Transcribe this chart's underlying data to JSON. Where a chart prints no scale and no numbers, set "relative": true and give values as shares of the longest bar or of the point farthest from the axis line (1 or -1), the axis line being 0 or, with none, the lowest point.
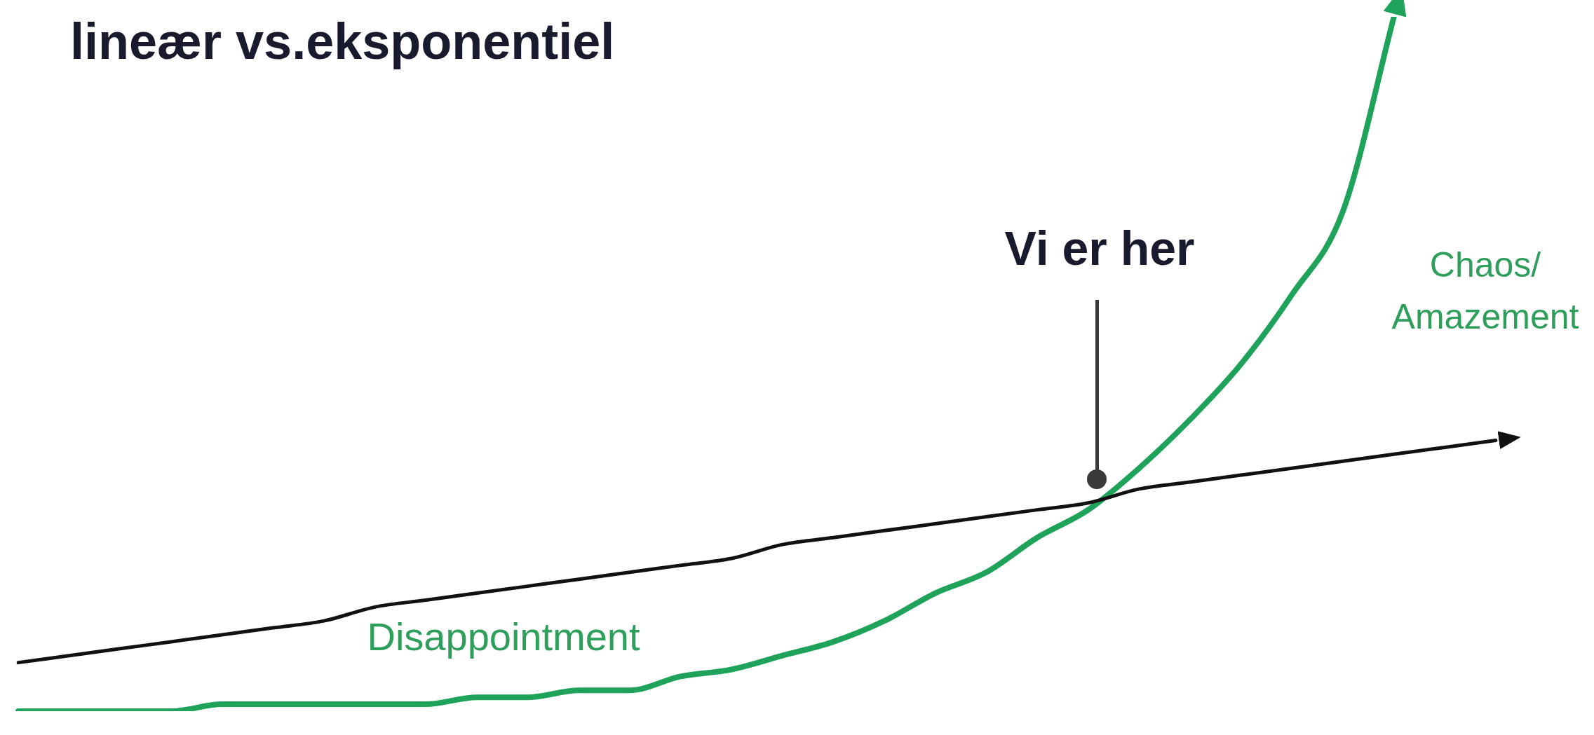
{
  "chart_data": {
    "type": "line",
    "title": "lineær vs.eksponentiel",
    "relative": true,
    "legend": false,
    "marker": "none",
    "categories": [
      null,
      null,
      null,
      null,
      null,
      null,
      null,
      null,
      null,
      null,
      null,
      null,
      null,
      null,
      null,
      null,
      null,
      null,
      null,
      null,
      null,
      null,
      null,
      null,
      null,
      null,
      null,
      null,
      null,
      null
    ],
    "series": [
      {
        "color": "#111111",
        "values": [
          0.07,
          0.08,
          0.09,
          0.1,
          0.11,
          0.12,
          0.13,
          0.15,
          0.16,
          0.17,
          0.18,
          0.19,
          0.2,
          0.21,
          0.22,
          0.24,
          0.25,
          0.26,
          0.27,
          0.28,
          0.29,
          0.3,
          0.32,
          0.33,
          0.34,
          0.35,
          0.36,
          0.37,
          0.38,
          0.39
        ]
      },
      {
        "color": "#1fa35a",
        "values": [
          0,
          0,
          0,
          0,
          0.01,
          0.01,
          0.01,
          0.01,
          0.01,
          0.02,
          0.02,
          0.03,
          0.03,
          0.05,
          0.06,
          0.08,
          0.1,
          0.13,
          0.17,
          0.2,
          0.25,
          0.29,
          0.35,
          0.42,
          0.5,
          0.6,
          0.72,
          1,
          null,
          null
        ]
      }
    ],
    "annotations": [
      "Disappointment",
      "Chaos/\nAmazement",
      "Vi er her"
    ]
  }
}
